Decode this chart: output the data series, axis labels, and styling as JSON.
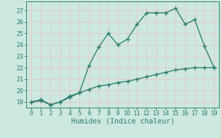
{
  "x": [
    0,
    1,
    2,
    3,
    4,
    5,
    6,
    7,
    8,
    9,
    10,
    11,
    12,
    13,
    14,
    15,
    16,
    17,
    18,
    19
  ],
  "line1": [
    19.0,
    19.1,
    18.75,
    19.0,
    19.5,
    19.8,
    22.2,
    23.8,
    25.0,
    24.0,
    24.5,
    25.8,
    26.8,
    26.8,
    26.8,
    27.2,
    25.8,
    26.2,
    23.9,
    22.0
  ],
  "line2": [
    19.0,
    19.2,
    18.75,
    19.0,
    19.4,
    19.8,
    20.1,
    20.4,
    20.5,
    20.7,
    20.8,
    21.0,
    21.2,
    21.4,
    21.6,
    21.8,
    21.9,
    22.0,
    22.0,
    22.0
  ],
  "line_color": "#2d7d6e",
  "bg_color": "#cce8e0",
  "grid_color_major": "#e8c8c8",
  "xlabel": "Humidex (Indice chaleur)",
  "ylim": [
    18.5,
    27.8
  ],
  "xlim": [
    -0.5,
    19.5
  ],
  "yticks": [
    19,
    20,
    21,
    22,
    23,
    24,
    25,
    26,
    27
  ],
  "xticks": [
    0,
    1,
    2,
    3,
    4,
    5,
    6,
    7,
    8,
    9,
    10,
    11,
    12,
    13,
    14,
    15,
    16,
    17,
    18,
    19
  ],
  "tick_fontsize": 6.5,
  "xlabel_fontsize": 7.5
}
